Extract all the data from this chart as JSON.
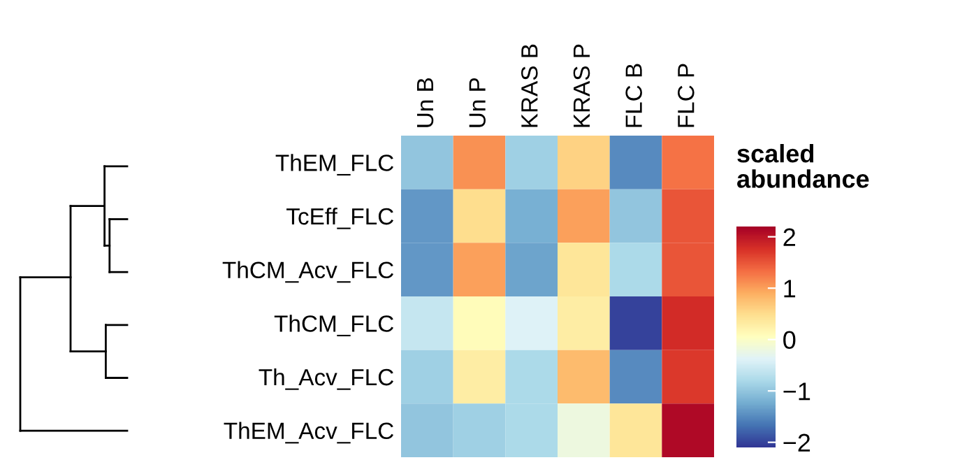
{
  "chart_data": {
    "type": "heatmap",
    "clabel": "scaled\nabundance",
    "categories": [
      "Un B",
      "Un P",
      "KRAS B",
      "KRAS P",
      "FLC B",
      "FLC P"
    ],
    "y_categories": [
      "ThEM_FLC",
      "TcEff_FLC",
      "ThCM_Acv_FLC",
      "ThCM_FLC",
      "Th_Acv_FLC",
      "ThEM_Acv_FLC"
    ],
    "cells": [
      [
        -1.0,
        1.1,
        -0.9,
        0.6,
        -1.5,
        1.3
      ],
      [
        -1.4,
        0.5,
        -1.2,
        1.0,
        -1.0,
        1.5
      ],
      [
        -1.4,
        1.0,
        -1.3,
        0.4,
        -0.8,
        1.5
      ],
      [
        -0.6,
        0.1,
        -0.4,
        0.3,
        -2.0,
        1.8
      ],
      [
        -0.9,
        0.3,
        -0.8,
        0.8,
        -1.5,
        1.7
      ],
      [
        -1.0,
        -0.9,
        -0.8,
        -0.2,
        0.4,
        2.1
      ]
    ],
    "clim": [
      -2.1,
      2.2
    ],
    "cticks": [
      {
        "value": -2,
        "label": "−2"
      },
      {
        "value": -1,
        "label": "−1"
      },
      0,
      1,
      2
    ]
  }
}
